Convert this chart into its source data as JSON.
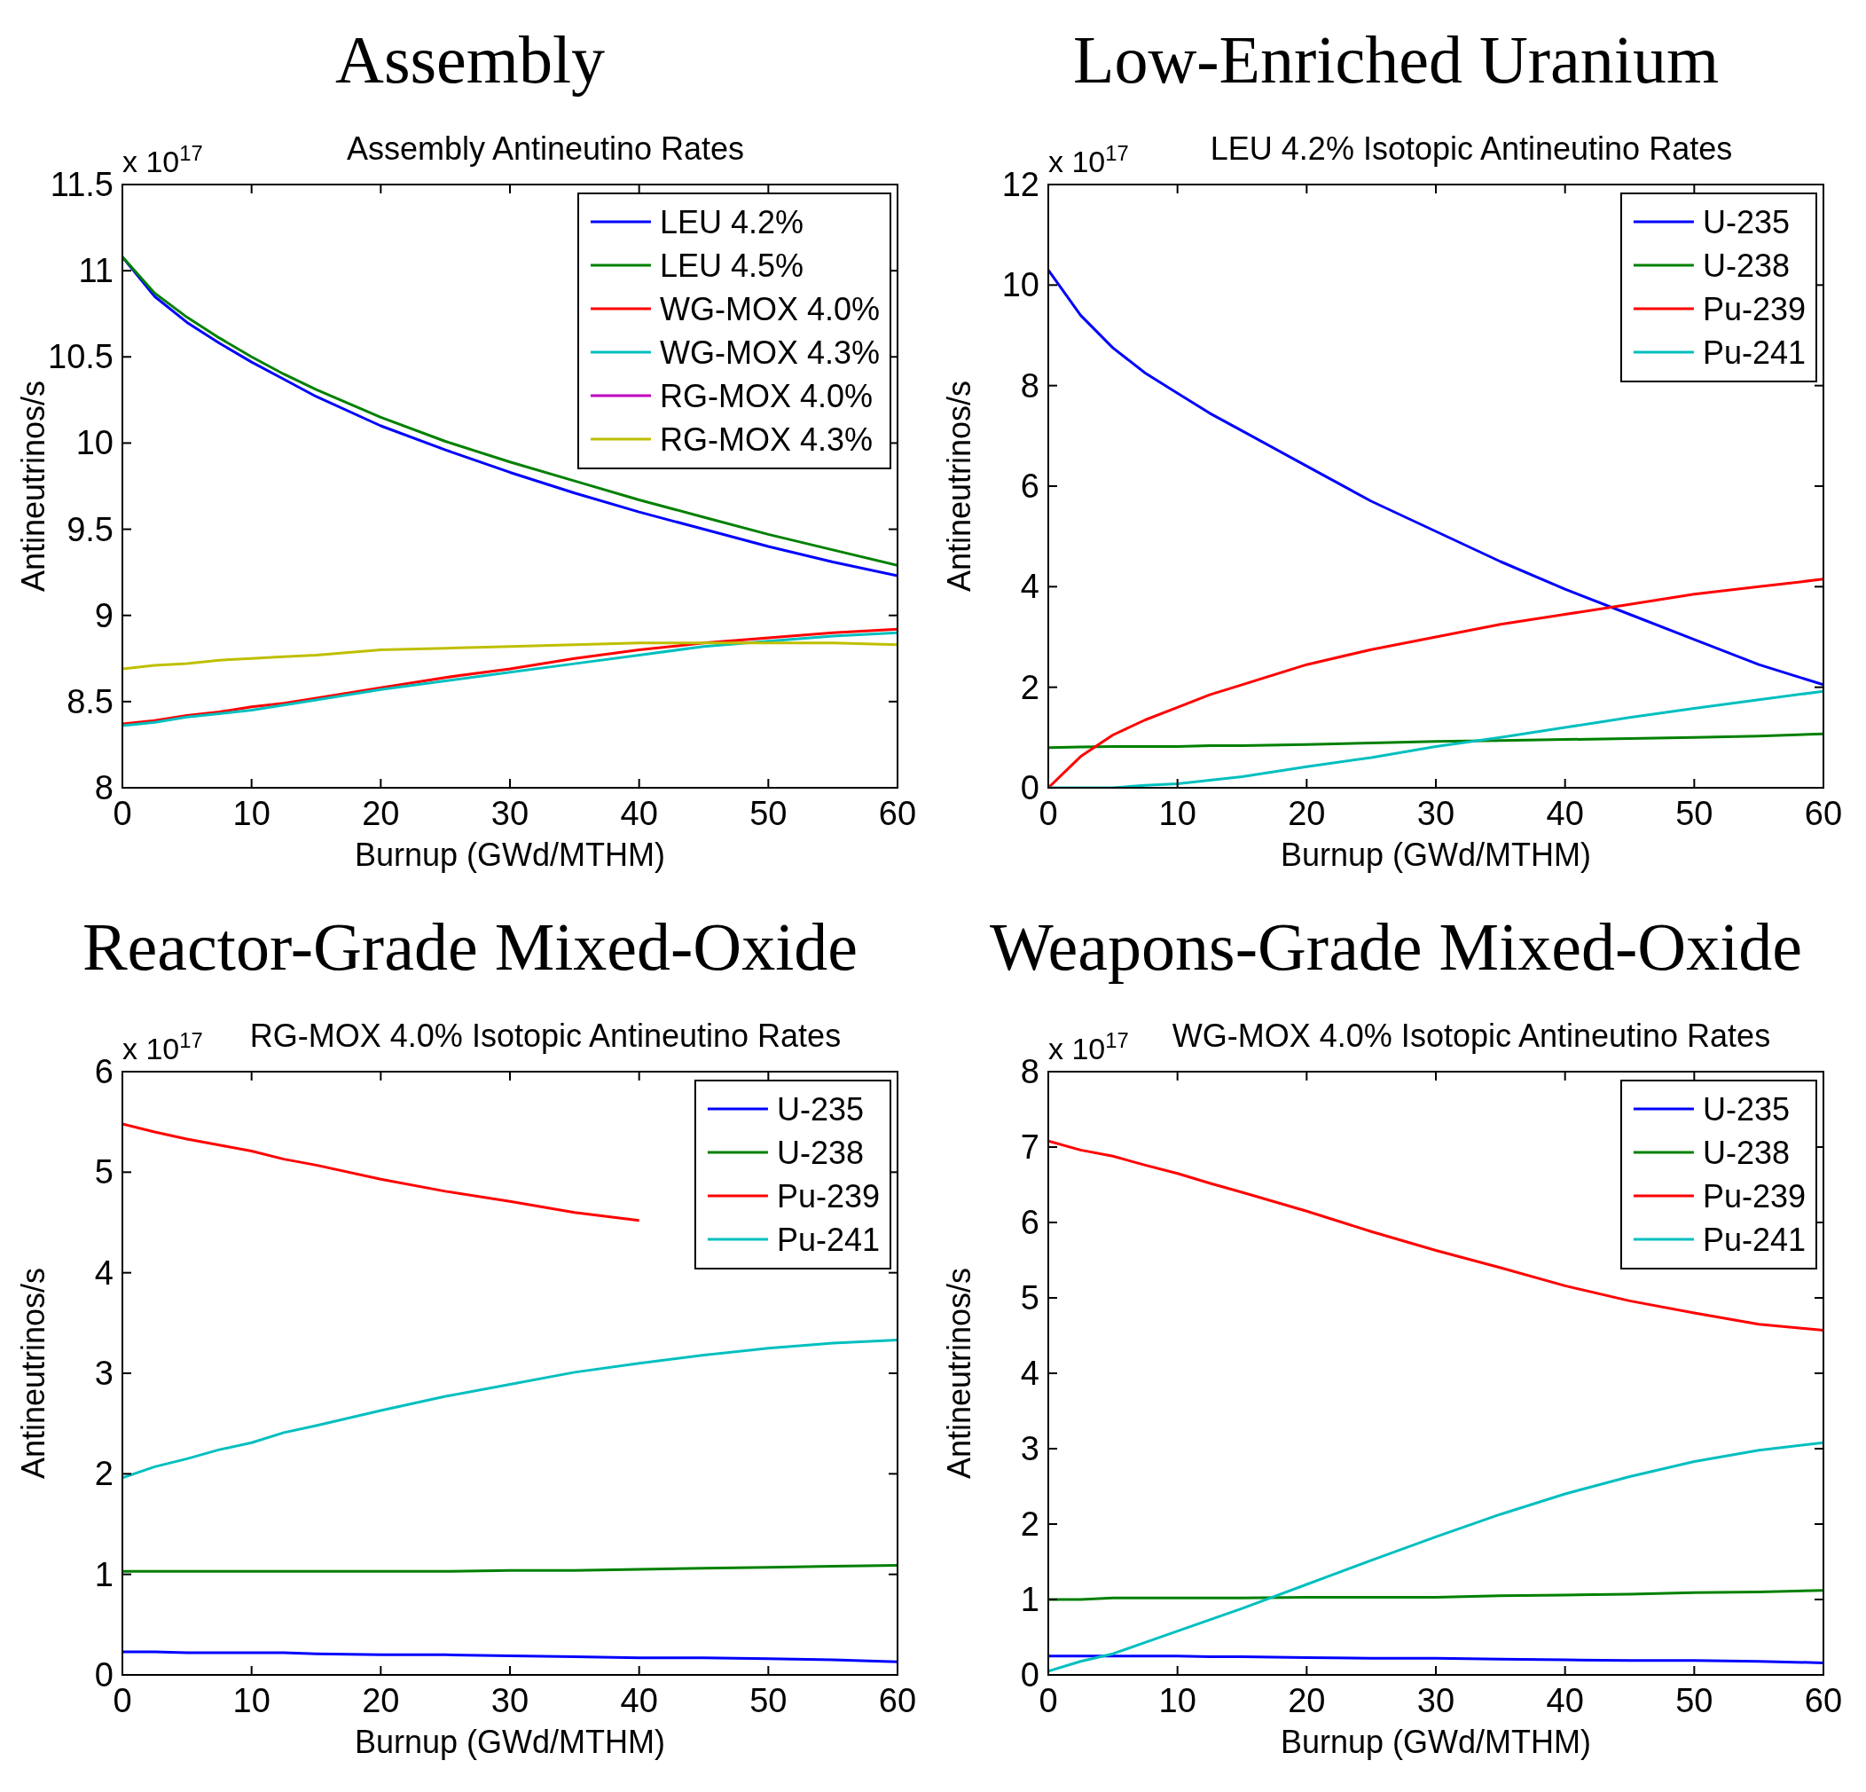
{
  "chart_data": [
    {
      "type": "line",
      "title": "Assembly",
      "subtitle": "Assembly Antineutino Rates",
      "xlabel": "Burnup (GWd/MTHM)",
      "ylabel": "Antineutrinos/s",
      "annotations": [
        "x 10$^{17}$"
      ],
      "x": [
        0,
        2.5,
        5,
        7.5,
        10,
        12.5,
        15,
        20,
        25,
        30,
        35,
        40,
        45,
        50,
        55,
        60
      ],
      "xlim": [
        0,
        60
      ],
      "xticks": [
        0,
        10,
        20,
        30,
        40,
        50,
        60
      ],
      "ylim": [
        8,
        11.5
      ],
      "yticks": [
        8,
        8.5,
        9,
        9.5,
        10,
        10.5,
        11,
        11.5
      ],
      "grid": false,
      "legend": "top right",
      "series": [
        {
          "name": "LEU 4.2%",
          "color": "#0000ff",
          "values": [
            11.08,
            10.85,
            10.7,
            10.58,
            10.47,
            10.37,
            10.27,
            10.1,
            9.96,
            9.83,
            9.71,
            9.6,
            9.5,
            9.4,
            9.31,
            9.23
          ]
        },
        {
          "name": "LEU 4.5%",
          "color": "#008000",
          "values": [
            11.08,
            10.87,
            10.73,
            10.61,
            10.5,
            10.4,
            10.31,
            10.15,
            10.01,
            9.89,
            9.78,
            9.67,
            9.57,
            9.47,
            9.38,
            9.29
          ]
        },
        {
          "name": "WG-MOX 4.0%",
          "color": "#ff0000",
          "values": [
            8.37,
            8.39,
            8.42,
            8.44,
            8.47,
            8.49,
            8.52,
            8.58,
            8.64,
            8.69,
            8.75,
            8.8,
            8.84,
            8.87,
            8.9,
            8.92
          ]
        },
        {
          "name": "WG-MOX 4.3%",
          "color": "#00bfbf",
          "values": [
            8.36,
            8.38,
            8.41,
            8.43,
            8.45,
            8.48,
            8.51,
            8.57,
            8.62,
            8.67,
            8.72,
            8.77,
            8.82,
            8.85,
            8.88,
            8.9
          ]
        },
        {
          "name": "RG-MOX 4.0%",
          "color": "#bf00bf",
          "values": [
            null,
            null,
            null,
            null,
            null,
            null,
            null,
            null,
            null,
            null,
            null,
            null,
            null,
            null,
            null,
            null
          ]
        },
        {
          "name": "RG-MOX 4.3%",
          "color": "#bfbf00",
          "values": [
            8.69,
            8.71,
            8.72,
            8.74,
            8.75,
            8.76,
            8.77,
            8.8,
            8.81,
            8.82,
            8.83,
            8.84,
            8.84,
            8.84,
            8.84,
            8.83
          ]
        }
      ]
    },
    {
      "type": "line",
      "title": "Low-Enriched Uranium",
      "subtitle": "LEU 4.2% Isotopic Antineutino Rates",
      "xlabel": "Burnup (GWd/MTHM)",
      "ylabel": "Antineutrinos/s",
      "annotations": [
        "x 10$^{17}$"
      ],
      "x": [
        0,
        2.5,
        5,
        7.5,
        10,
        12.5,
        15,
        20,
        25,
        30,
        35,
        40,
        45,
        50,
        55,
        60
      ],
      "xlim": [
        0,
        60
      ],
      "xticks": [
        0,
        10,
        20,
        30,
        40,
        50,
        60
      ],
      "ylim": [
        0,
        12
      ],
      "yticks": [
        0,
        2,
        4,
        6,
        8,
        10,
        12
      ],
      "grid": false,
      "legend": "top right",
      "series": [
        {
          "name": "U-235",
          "color": "#0000ff",
          "values": [
            10.3,
            9.4,
            8.75,
            8.25,
            7.85,
            7.45,
            7.1,
            6.4,
            5.7,
            5.1,
            4.5,
            3.95,
            3.45,
            2.95,
            2.45,
            2.05
          ]
        },
        {
          "name": "U-238",
          "color": "#008000",
          "values": [
            0.8,
            0.81,
            0.82,
            0.82,
            0.82,
            0.84,
            0.84,
            0.86,
            0.89,
            0.92,
            0.94,
            0.96,
            0.98,
            1.0,
            1.03,
            1.07
          ]
        },
        {
          "name": "Pu-239",
          "color": "#ff0000",
          "values": [
            0.0,
            0.62,
            1.05,
            1.35,
            1.6,
            1.85,
            2.05,
            2.45,
            2.75,
            3.0,
            3.25,
            3.45,
            3.65,
            3.85,
            4.0,
            4.15
          ]
        },
        {
          "name": "Pu-241",
          "color": "#00bfbf",
          "values": [
            0,
            0,
            0,
            0.05,
            0.08,
            0.15,
            0.22,
            0.42,
            0.6,
            0.82,
            1.0,
            1.2,
            1.4,
            1.58,
            1.75,
            1.92
          ]
        }
      ]
    },
    {
      "type": "line",
      "title": "Reactor-Grade Mixed-Oxide",
      "subtitle": "RG-MOX 4.0% Isotopic Antineutino Rates",
      "xlabel": "Burnup (GWd/MTHM)",
      "ylabel": "Antineutrinos/s",
      "annotations": [
        "x 10$^{17}$"
      ],
      "x": [
        0,
        2.5,
        5,
        7.5,
        10,
        12.5,
        15,
        20,
        25,
        30,
        35,
        40,
        45,
        50,
        55,
        60
      ],
      "xlim": [
        0,
        60
      ],
      "xticks": [
        0,
        10,
        20,
        30,
        40,
        50,
        60
      ],
      "ylim": [
        0,
        6
      ],
      "yticks": [
        0,
        1,
        2,
        3,
        4,
        5,
        6
      ],
      "grid": false,
      "legend": "top right",
      "series": [
        {
          "name": "U-235",
          "color": "#0000ff",
          "values": [
            0.23,
            0.23,
            0.22,
            0.22,
            0.22,
            0.22,
            0.21,
            0.2,
            0.2,
            0.19,
            0.18,
            0.17,
            0.17,
            0.16,
            0.15,
            0.13
          ]
        },
        {
          "name": "U-238",
          "color": "#008000",
          "values": [
            1.03,
            1.03,
            1.03,
            1.03,
            1.03,
            1.03,
            1.03,
            1.03,
            1.03,
            1.04,
            1.04,
            1.05,
            1.06,
            1.07,
            1.08,
            1.09
          ]
        },
        {
          "name": "Pu-239",
          "color": "#ff0000",
          "values": [
            5.48,
            5.4,
            5.33,
            5.27,
            5.21,
            5.13,
            5.07,
            4.93,
            4.81,
            4.71,
            4.6,
            4.52,
            null,
            null,
            null,
            null
          ]
        },
        {
          "name": "Pu-241",
          "color": "#00bfbf",
          "values": [
            1.96,
            2.07,
            2.15,
            2.24,
            2.31,
            2.41,
            2.48,
            2.63,
            2.77,
            2.89,
            3.01,
            3.1,
            3.18,
            3.25,
            3.3,
            3.33
          ]
        }
      ]
    },
    {
      "type": "line",
      "title": "Weapons-Grade Mixed-Oxide",
      "subtitle": "WG-MOX 4.0% Isotopic Antineutino Rates",
      "xlabel": "Burnup (GWd/MTHM)",
      "ylabel": "Antineutrinos/s",
      "annotations": [
        "x 10$^{17}$"
      ],
      "x": [
        0,
        2.5,
        5,
        7.5,
        10,
        12.5,
        15,
        20,
        25,
        30,
        35,
        40,
        45,
        50,
        55,
        60
      ],
      "xlim": [
        0,
        60
      ],
      "xticks": [
        0,
        10,
        20,
        30,
        40,
        50,
        60
      ],
      "ylim": [
        0,
        8
      ],
      "yticks": [
        0,
        1,
        2,
        3,
        4,
        5,
        6,
        7,
        8
      ],
      "grid": false,
      "legend": "top right",
      "series": [
        {
          "name": "U-235",
          "color": "#0000ff",
          "values": [
            0.25,
            0.25,
            0.25,
            0.25,
            0.25,
            0.24,
            0.24,
            0.23,
            0.22,
            0.22,
            0.21,
            0.2,
            0.19,
            0.19,
            0.18,
            0.16
          ]
        },
        {
          "name": "U-238",
          "color": "#008000",
          "values": [
            1.0,
            1.0,
            1.02,
            1.02,
            1.02,
            1.02,
            1.02,
            1.03,
            1.03,
            1.03,
            1.05,
            1.06,
            1.07,
            1.09,
            1.1,
            1.12
          ]
        },
        {
          "name": "Pu-239",
          "color": "#ff0000",
          "values": [
            7.08,
            6.96,
            6.88,
            6.76,
            6.65,
            6.52,
            6.4,
            6.15,
            5.88,
            5.63,
            5.4,
            5.16,
            4.96,
            4.8,
            4.65,
            4.57
          ]
        },
        {
          "name": "Pu-241",
          "color": "#00bfbf",
          "values": [
            0.05,
            0.18,
            0.28,
            0.43,
            0.58,
            0.73,
            0.88,
            1.2,
            1.52,
            1.83,
            2.13,
            2.4,
            2.63,
            2.83,
            2.98,
            3.08
          ]
        }
      ]
    }
  ]
}
